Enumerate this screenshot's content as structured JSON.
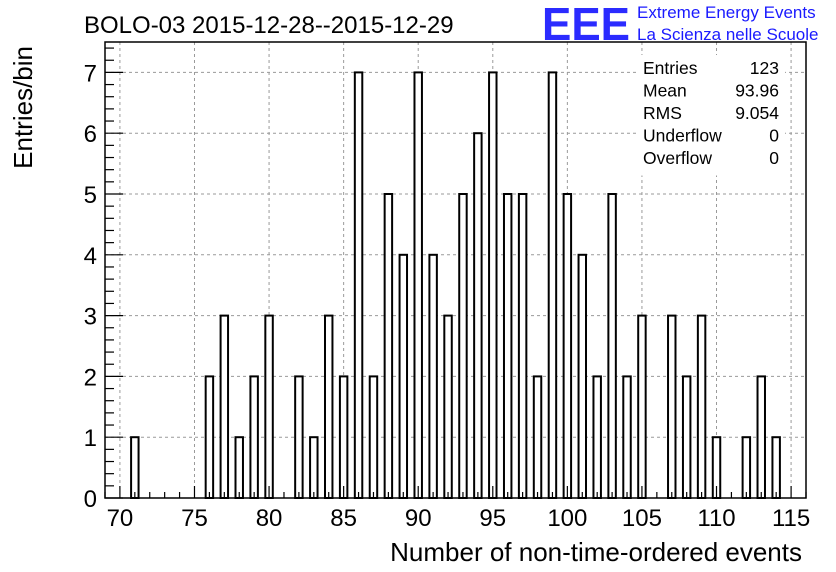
{
  "chart_data": {
    "type": "bar",
    "title": "BOLO-03 2015-12-28--2015-12-29",
    "xlabel": "Number of non-time-ordered events",
    "ylabel": "Entries/bin",
    "xlim": [
      69,
      116
    ],
    "ylim": [
      0,
      7.5
    ],
    "x_ticks": [
      70,
      75,
      80,
      85,
      90,
      95,
      100,
      105,
      110,
      115
    ],
    "y_ticks": [
      0,
      1,
      2,
      3,
      4,
      5,
      6,
      7
    ],
    "grid": true,
    "bins": [
      {
        "x": 71,
        "count": 1
      },
      {
        "x": 76,
        "count": 2
      },
      {
        "x": 77,
        "count": 3
      },
      {
        "x": 78,
        "count": 1
      },
      {
        "x": 79,
        "count": 2
      },
      {
        "x": 80,
        "count": 3
      },
      {
        "x": 82,
        "count": 2
      },
      {
        "x": 83,
        "count": 1
      },
      {
        "x": 84,
        "count": 3
      },
      {
        "x": 85,
        "count": 2
      },
      {
        "x": 86,
        "count": 7
      },
      {
        "x": 87,
        "count": 2
      },
      {
        "x": 88,
        "count": 5
      },
      {
        "x": 89,
        "count": 4
      },
      {
        "x": 90,
        "count": 7
      },
      {
        "x": 91,
        "count": 4
      },
      {
        "x": 92,
        "count": 3
      },
      {
        "x": 93,
        "count": 5
      },
      {
        "x": 94,
        "count": 6
      },
      {
        "x": 95,
        "count": 7
      },
      {
        "x": 96,
        "count": 5
      },
      {
        "x": 97,
        "count": 5
      },
      {
        "x": 98,
        "count": 2
      },
      {
        "x": 99,
        "count": 7
      },
      {
        "x": 100,
        "count": 5
      },
      {
        "x": 101,
        "count": 4
      },
      {
        "x": 102,
        "count": 2
      },
      {
        "x": 103,
        "count": 5
      },
      {
        "x": 104,
        "count": 2
      },
      {
        "x": 105,
        "count": 3
      },
      {
        "x": 107,
        "count": 3
      },
      {
        "x": 108,
        "count": 2
      },
      {
        "x": 109,
        "count": 3
      },
      {
        "x": 110,
        "count": 1
      },
      {
        "x": 112,
        "count": 1
      },
      {
        "x": 113,
        "count": 2
      },
      {
        "x": 114,
        "count": 1
      }
    ],
    "stats": [
      {
        "label": "Entries",
        "value": "123"
      },
      {
        "label": "Mean",
        "value": "93.96"
      },
      {
        "label": "RMS",
        "value": "9.054"
      },
      {
        "label": "Underflow",
        "value": "0"
      },
      {
        "label": "Overflow",
        "value": "0"
      }
    ],
    "stats_placement": "top-right"
  },
  "logo": {
    "mark": "EEE",
    "line1": "Extreme Energy Events",
    "line2": "La Scienza nelle Scuole",
    "color": "#2b2bff"
  }
}
